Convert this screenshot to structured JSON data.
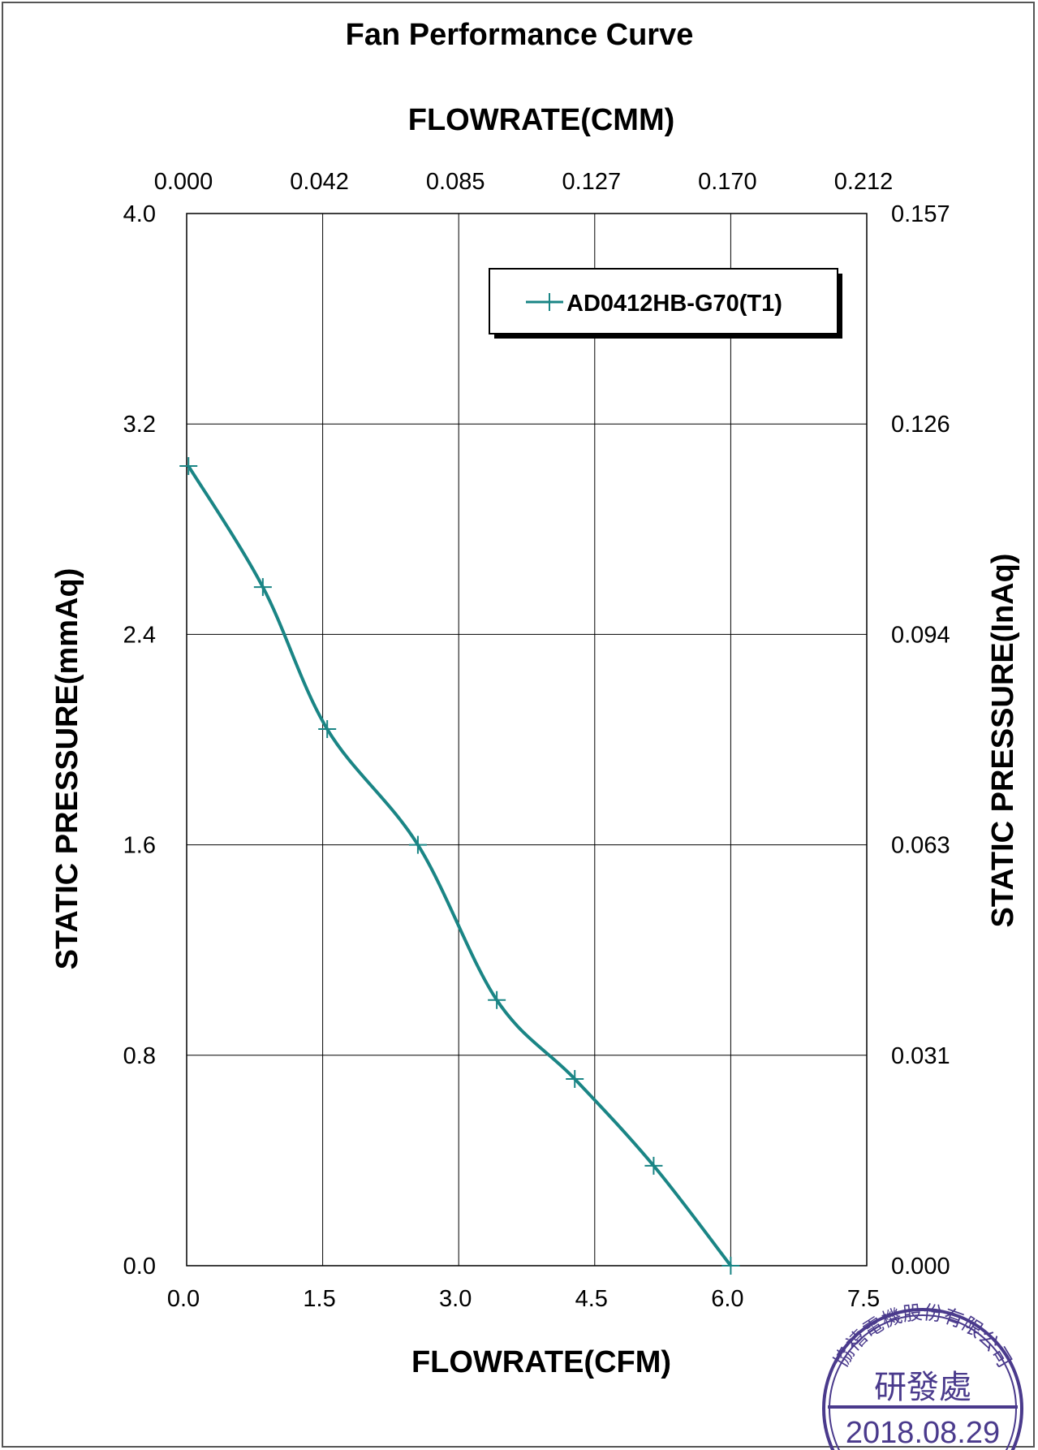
{
  "chart_data": {
    "type": "line",
    "title": "Fan Performance Curve",
    "xlabel": "FLOWRATE(CFM)",
    "x2label": "FLOWRATE(CMM)",
    "ylabel": "STATIC PRESSURE(mmAq)",
    "y2label": "STATIC PRESSURE(InAq)",
    "xlim": [
      0,
      7.5
    ],
    "ylim": [
      0,
      4.0
    ],
    "x_ticks": [
      "0.0",
      "1.5",
      "3.0",
      "4.5",
      "6.0",
      "7.5"
    ],
    "x2_ticks": [
      "0.000",
      "0.042",
      "0.085",
      "0.127",
      "0.170",
      "0.212"
    ],
    "y_ticks": [
      "0.0",
      "0.8",
      "1.6",
      "2.4",
      "3.2",
      "4.0"
    ],
    "y2_ticks": [
      "0.000",
      "0.031",
      "0.063",
      "0.094",
      "0.126",
      "0.157"
    ],
    "grid": true,
    "legend_position": "top-right",
    "series": [
      {
        "name": "AD0412HB-G70(T1)",
        "color": "#1a8585",
        "marker": "plus",
        "x": [
          0.02,
          0.84,
          1.55,
          2.55,
          3.42,
          4.28,
          5.15,
          6.0
        ],
        "y": [
          3.04,
          2.58,
          2.04,
          1.6,
          1.01,
          0.71,
          0.38,
          0.0
        ]
      }
    ]
  },
  "stamp": {
    "company": "協禧電機股份有限公司",
    "department": "研發處",
    "date": "2018.08.29",
    "color": "#4a3a8c"
  }
}
